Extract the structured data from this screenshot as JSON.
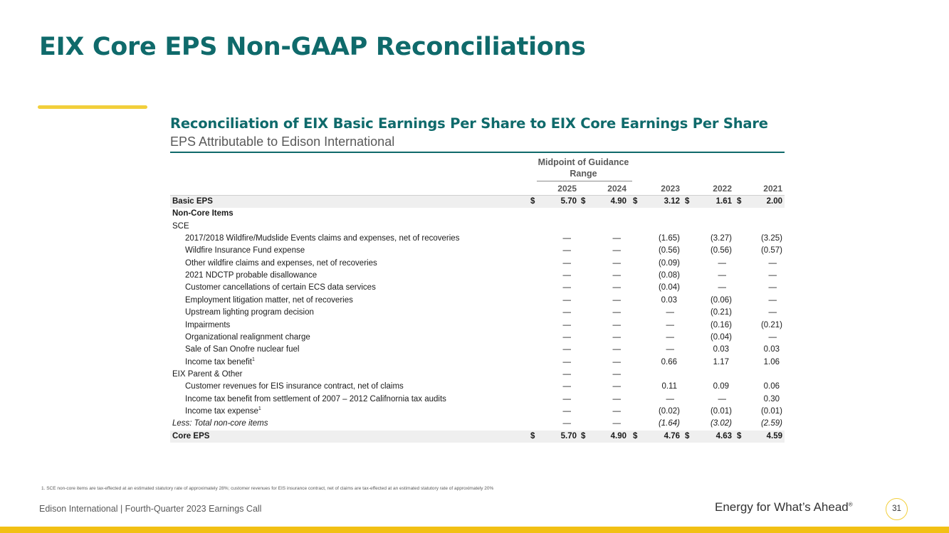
{
  "slide": {
    "title": "EIX Core EPS Non-GAAP Reconciliations",
    "page_number": "31"
  },
  "table": {
    "title": "Reconciliation of EIX Basic Earnings Per Share to EIX Core Earnings Per Share",
    "subtitle": "EPS Attributable to Edison International",
    "group_header": "Midpoint of Guidance Range",
    "years": [
      "2025",
      "2024",
      "2023",
      "2022",
      "2021"
    ],
    "rows": [
      {
        "label": "Basic EPS",
        "sup": "",
        "style": "bold",
        "indent": false,
        "shaded": true,
        "dollar": true,
        "values": [
          "5.70",
          "4.90",
          "3.12",
          "1.61",
          "2.00"
        ]
      },
      {
        "label": "Non-Core Items",
        "sup": "",
        "style": "bold",
        "indent": false,
        "shaded": false,
        "dollar": false,
        "values": [
          "",
          "",
          "",
          "",
          ""
        ]
      },
      {
        "label": "SCE",
        "sup": "",
        "style": "normal",
        "indent": false,
        "shaded": false,
        "dollar": false,
        "values": [
          "",
          "",
          "",
          "",
          ""
        ]
      },
      {
        "label": "2017/2018 Wildfire/Mudslide Events claims and expenses, net of recoveries",
        "sup": "",
        "style": "normal",
        "indent": true,
        "shaded": false,
        "dollar": false,
        "values": [
          "—",
          "—",
          "(1.65)",
          "(3.27)",
          "(3.25)"
        ]
      },
      {
        "label": "Wildfire Insurance Fund expense",
        "sup": "",
        "style": "normal",
        "indent": true,
        "shaded": false,
        "dollar": false,
        "values": [
          "—",
          "—",
          "(0.56)",
          "(0.56)",
          "(0.57)"
        ]
      },
      {
        "label": "Other wildfire claims and expenses, net of recoveries",
        "sup": "",
        "style": "normal",
        "indent": true,
        "shaded": false,
        "dollar": false,
        "values": [
          "—",
          "—",
          "(0.09)",
          "—",
          "—"
        ]
      },
      {
        "label": "2021 NDCTP probable disallowance",
        "sup": "",
        "style": "normal",
        "indent": true,
        "shaded": false,
        "dollar": false,
        "values": [
          "—",
          "—",
          "(0.08)",
          "—",
          "—"
        ]
      },
      {
        "label": "Customer cancellations of certain ECS data services",
        "sup": "",
        "style": "normal",
        "indent": true,
        "shaded": false,
        "dollar": false,
        "values": [
          "—",
          "—",
          "(0.04)",
          "—",
          "—"
        ]
      },
      {
        "label": "Employment litigation matter, net of recoveries",
        "sup": "",
        "style": "normal",
        "indent": true,
        "shaded": false,
        "dollar": false,
        "values": [
          "—",
          "—",
          "0.03",
          "(0.06)",
          "—"
        ]
      },
      {
        "label": "Upstream lighting program decision",
        "sup": "",
        "style": "normal",
        "indent": true,
        "shaded": false,
        "dollar": false,
        "values": [
          "—",
          "—",
          "—",
          "(0.21)",
          "—"
        ]
      },
      {
        "label": "Impairments",
        "sup": "",
        "style": "normal",
        "indent": true,
        "shaded": false,
        "dollar": false,
        "values": [
          "—",
          "—",
          "—",
          "(0.16)",
          "(0.21)"
        ]
      },
      {
        "label": "Organizational realignment charge",
        "sup": "",
        "style": "normal",
        "indent": true,
        "shaded": false,
        "dollar": false,
        "values": [
          "—",
          "—",
          "—",
          "(0.04)",
          "—"
        ]
      },
      {
        "label": "Sale of San Onofre nuclear fuel",
        "sup": "",
        "style": "normal",
        "indent": true,
        "shaded": false,
        "dollar": false,
        "values": [
          "—",
          "—",
          "—",
          "0.03",
          "0.03"
        ]
      },
      {
        "label": "Income tax benefit",
        "sup": "1",
        "style": "normal",
        "indent": true,
        "shaded": false,
        "dollar": false,
        "values": [
          "—",
          "—",
          "0.66",
          "1.17",
          "1.06"
        ]
      },
      {
        "label": "EIX Parent & Other",
        "sup": "",
        "style": "normal",
        "indent": false,
        "shaded": false,
        "dollar": false,
        "values": [
          "—",
          "—",
          "",
          "",
          ""
        ]
      },
      {
        "label": "Customer revenues for EIS insurance contract, net of claims",
        "sup": "",
        "style": "normal",
        "indent": true,
        "shaded": false,
        "dollar": false,
        "values": [
          "—",
          "—",
          "0.11",
          "0.09",
          "0.06"
        ]
      },
      {
        "label": "Income tax benefit from settlement of 2007 – 2012 Califnornia tax audits",
        "sup": "",
        "style": "normal",
        "indent": true,
        "shaded": false,
        "dollar": false,
        "values": [
          "—",
          "—",
          "—",
          "—",
          "0.30"
        ]
      },
      {
        "label": "Income tax expense",
        "sup": "1",
        "style": "normal",
        "indent": true,
        "shaded": false,
        "dollar": false,
        "values": [
          "—",
          "—",
          "(0.02)",
          "(0.01)",
          "(0.01)"
        ]
      },
      {
        "label": "Less: Total non-core items",
        "sup": "",
        "style": "italic",
        "indent": false,
        "shaded": false,
        "dollar": false,
        "values": [
          "—",
          "—",
          "(1.64)",
          "(3.02)",
          "(2.59)"
        ]
      },
      {
        "label": "Core EPS",
        "sup": "",
        "style": "bold",
        "indent": false,
        "shaded": true,
        "dollar": true,
        "values": [
          "5.70",
          "4.90",
          "4.76",
          "4.63",
          "4.59"
        ]
      }
    ],
    "currency_symbol": "$"
  },
  "footnote": "1.   SCE non-core items are tax-effected at an estimated statutory rate of approximately 28%; customer revenues for EIS insurance contract, net of claims are tax-effected at an estimated statutory rate of approximately 20%",
  "footer": {
    "left": "Edison International |  Fourth-Quarter 2023 Earnings Call",
    "tagline": "Energy for What’s Ahead",
    "tagline_mark": "®"
  },
  "colors": {
    "title_teal": "#0f6a6b",
    "accent_yellow": "#f2cf3b",
    "bottom_bar_gold": "#f2c014",
    "row_shade": "#efefef"
  }
}
